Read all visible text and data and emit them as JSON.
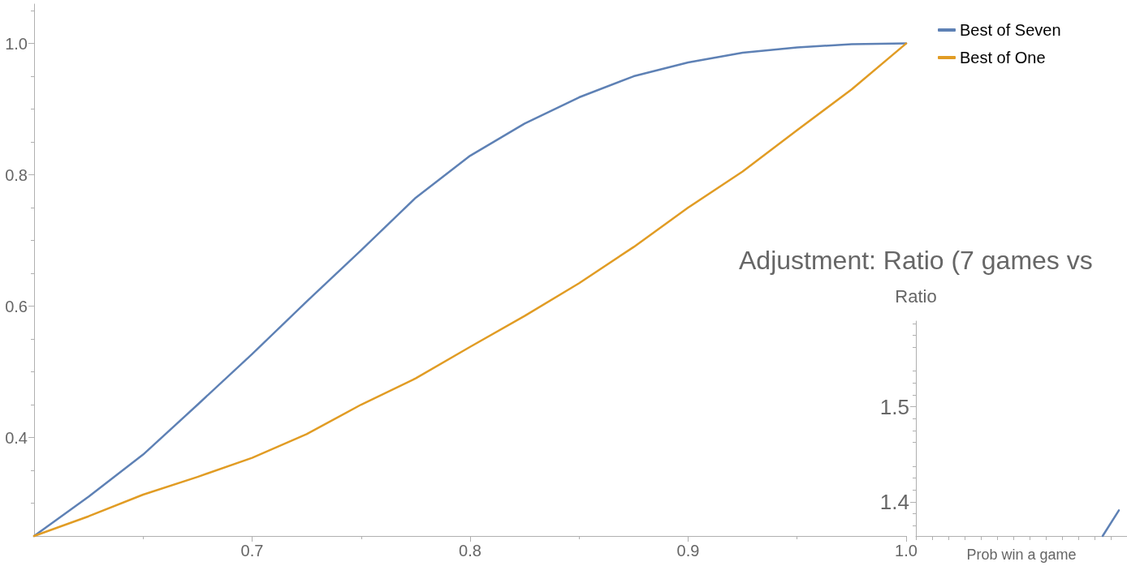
{
  "chart_data": [
    {
      "type": "line",
      "x": [
        0.6,
        0.625,
        0.65,
        0.675,
        0.7,
        0.725,
        0.75,
        0.775,
        0.8,
        0.825,
        0.85,
        0.875,
        0.9,
        0.925,
        0.95,
        0.975,
        1.0
      ],
      "series": [
        {
          "name": "Best of Seven",
          "color": "#5e81b5",
          "values": [
            0.25,
            0.31,
            0.374,
            0.45,
            0.527,
            0.607,
            0.685,
            0.765,
            0.829,
            0.878,
            0.918,
            0.95,
            0.971,
            0.986,
            0.994,
            0.999,
            1.0
          ]
        },
        {
          "name": "Best of One",
          "color": "#e19c24",
          "values": [
            0.25,
            0.28,
            0.313,
            0.34,
            0.369,
            0.405,
            0.45,
            0.49,
            0.538,
            0.585,
            0.635,
            0.69,
            0.75,
            0.805,
            0.868,
            0.93,
            1.0
          ]
        }
      ],
      "xlim": [
        0.6,
        1.0
      ],
      "xticks": [
        0.7,
        0.8,
        0.9,
        {
          "value": 1.0,
          "label": "1.0"
        }
      ],
      "ylim": [
        0.25,
        1.06
      ],
      "yticks": [
        0.4,
        0.6,
        0.8,
        {
          "value": 1.0,
          "label": "1.0"
        }
      ],
      "legend": "right",
      "marker": "none",
      "line_style": "solid",
      "grid": false
    },
    {
      "type": "line",
      "title": "Adjustment: Ratio (7 games vs",
      "ylabel": "Ratio",
      "xlabel": "Prob win a game",
      "categories": [
        null,
        null,
        null,
        null,
        null,
        null,
        null,
        null,
        null,
        null,
        null,
        null,
        null
      ],
      "series": [
        {
          "color": "#5e81b5",
          "values": [
            null,
            null,
            null,
            null,
            null,
            null,
            null,
            null,
            null,
            null,
            null,
            1.364,
            1.391
          ]
        }
      ],
      "ylim": [
        1.364,
        1.59
      ],
      "yticks": [
        1.4,
        1.5
      ],
      "tick_labels": "y",
      "marker": "none",
      "line_style": "solid",
      "grid": false
    }
  ]
}
